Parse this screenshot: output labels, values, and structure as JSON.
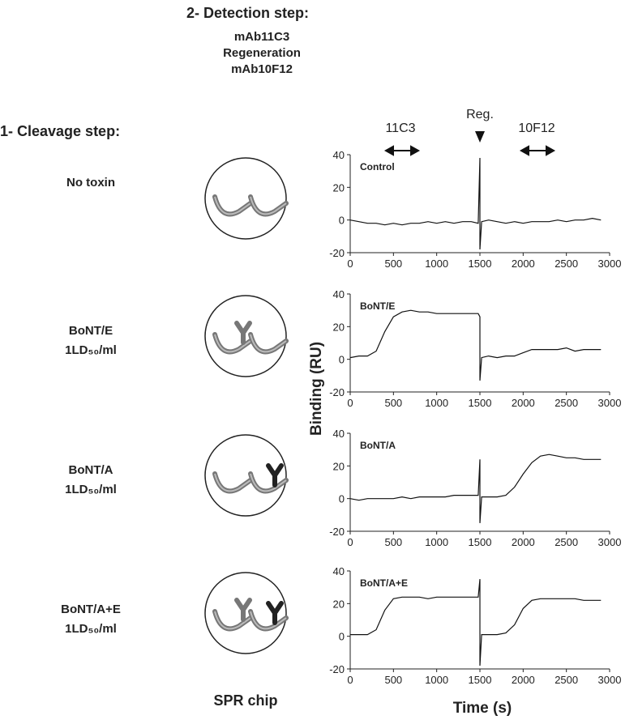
{
  "detection_step": {
    "title": "2- Detection step:",
    "items": [
      "mAb11C3",
      "Regeneration",
      "mAb10F12"
    ]
  },
  "cleavage_step": {
    "title": "1- Cleavage step:",
    "rows": [
      {
        "name": "No toxin"
      },
      {
        "name": "BoNT/E",
        "dose": "1LD₅₀/ml"
      },
      {
        "name": "BoNT/A",
        "dose": "1LD₅₀/ml"
      },
      {
        "name": "BoNT/A+E",
        "dose": "1LD₅₀/ml"
      }
    ]
  },
  "chip_label": "SPR chip",
  "annotations": {
    "first": "11C3",
    "regeneration": "Reg.",
    "second": "10F12"
  },
  "y_label": "Binding (RU)",
  "x_label": "Time (s)",
  "chart_data": [
    {
      "type": "line",
      "title": "Control",
      "color": "#111",
      "x": [
        0,
        100,
        200,
        300,
        400,
        500,
        600,
        700,
        800,
        900,
        1000,
        1100,
        1200,
        1300,
        1400,
        1480,
        1500,
        1500,
        1520,
        1600,
        1700,
        1800,
        1900,
        2000,
        2100,
        2200,
        2300,
        2400,
        2500,
        2600,
        2700,
        2800,
        2900
      ],
      "values": [
        0,
        -1,
        -2,
        -2,
        -3,
        -2,
        -3,
        -2,
        -2,
        -1,
        -2,
        -1,
        -2,
        -1,
        -1,
        -2,
        38,
        -18,
        -1,
        0,
        -1,
        -2,
        -1,
        -2,
        -1,
        -1,
        -1,
        0,
        -1,
        0,
        0,
        1,
        0
      ],
      "xlim": [
        0,
        3000
      ],
      "xticks": [
        0,
        500,
        1000,
        1500,
        2000,
        2500,
        3000
      ],
      "ylim": [
        -20,
        40
      ],
      "yticks": [
        -20,
        0,
        20,
        40
      ]
    },
    {
      "type": "line",
      "title": "BoNT/E",
      "color": "#111",
      "x": [
        0,
        100,
        200,
        300,
        400,
        500,
        600,
        700,
        800,
        900,
        1000,
        1100,
        1200,
        1300,
        1400,
        1480,
        1500,
        1500,
        1520,
        1600,
        1700,
        1800,
        1900,
        2000,
        2100,
        2200,
        2300,
        2400,
        2500,
        2600,
        2700,
        2800,
        2900
      ],
      "values": [
        1,
        2,
        2,
        5,
        17,
        26,
        29,
        30,
        29,
        29,
        28,
        28,
        28,
        28,
        28,
        28,
        26,
        -13,
        1,
        2,
        1,
        2,
        2,
        4,
        6,
        6,
        6,
        6,
        7,
        5,
        6,
        6,
        6
      ],
      "xlim": [
        0,
        3000
      ],
      "xticks": [
        0,
        500,
        1000,
        1500,
        2000,
        2500,
        3000
      ],
      "ylim": [
        -20,
        40
      ],
      "yticks": [
        -20,
        0,
        20,
        40
      ]
    },
    {
      "type": "line",
      "title": "BoNT/A",
      "color": "#111",
      "x": [
        0,
        100,
        200,
        300,
        400,
        500,
        600,
        700,
        800,
        900,
        1000,
        1100,
        1200,
        1300,
        1400,
        1480,
        1500,
        1500,
        1520,
        1600,
        1700,
        1800,
        1900,
        2000,
        2100,
        2200,
        2300,
        2400,
        2500,
        2600,
        2700,
        2800,
        2900
      ],
      "values": [
        0,
        -1,
        0,
        0,
        0,
        0,
        1,
        0,
        1,
        1,
        1,
        1,
        2,
        2,
        2,
        2,
        24,
        -15,
        1,
        1,
        1,
        2,
        7,
        15,
        22,
        26,
        27,
        26,
        25,
        25,
        24,
        24,
        24
      ],
      "xlim": [
        0,
        3000
      ],
      "xticks": [
        0,
        500,
        1000,
        1500,
        2000,
        2500,
        3000
      ],
      "ylim": [
        -20,
        40
      ],
      "yticks": [
        -20,
        0,
        20,
        40
      ]
    },
    {
      "type": "line",
      "title": "BoNT/A+E",
      "color": "#111",
      "x": [
        0,
        100,
        200,
        300,
        400,
        500,
        600,
        700,
        800,
        900,
        1000,
        1100,
        1200,
        1300,
        1400,
        1480,
        1500,
        1500,
        1520,
        1600,
        1700,
        1800,
        1900,
        2000,
        2100,
        2200,
        2300,
        2400,
        2500,
        2600,
        2700,
        2800,
        2900
      ],
      "values": [
        1,
        1,
        1,
        4,
        16,
        23,
        24,
        24,
        24,
        23,
        24,
        24,
        24,
        24,
        24,
        24,
        35,
        -18,
        1,
        1,
        1,
        2,
        7,
        17,
        22,
        23,
        23,
        23,
        23,
        23,
        22,
        22,
        22
      ],
      "xlim": [
        0,
        3000
      ],
      "xticks": [
        0,
        500,
        1000,
        1500,
        2000,
        2500,
        3000
      ],
      "ylim": [
        -20,
        40
      ],
      "yticks": [
        -20,
        0,
        20,
        40
      ]
    }
  ]
}
